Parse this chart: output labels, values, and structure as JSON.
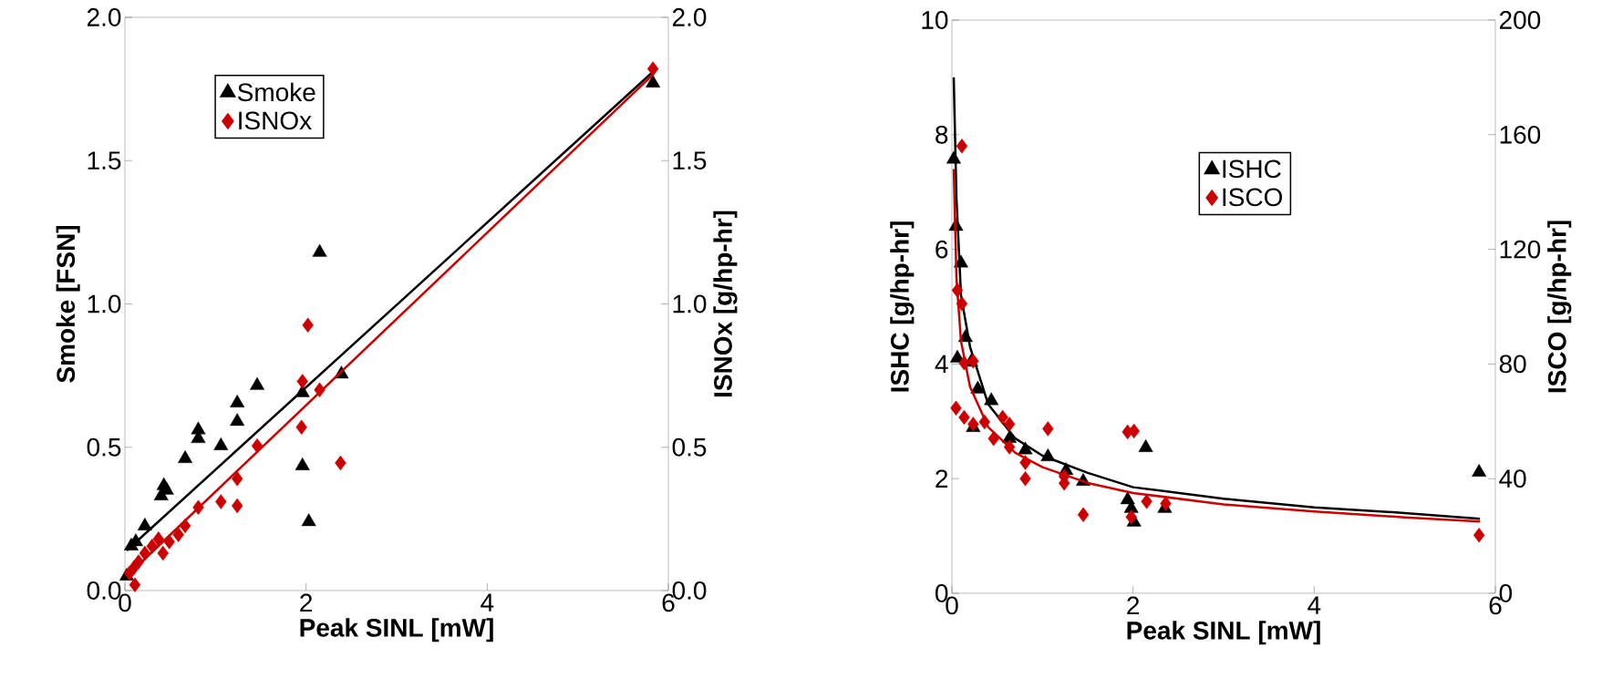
{
  "chart_data": [
    {
      "type": "scatter",
      "xlabel": "Peak SINL [mW]",
      "ylabel": "Smoke [FSN]",
      "y2label": "ISNOx [g/hp-hr]",
      "legend": "top left",
      "xlim": [
        0,
        6
      ],
      "xticks": [
        0,
        2,
        4,
        6
      ],
      "ylim": [
        0,
        2
      ],
      "yticks": [
        {
          "value": 0,
          "label": "0.0"
        },
        {
          "value": 0.5,
          "label": "0.5"
        },
        {
          "value": 1,
          "label": "1.0"
        },
        {
          "value": 1.5,
          "label": "1.5"
        },
        {
          "value": 2,
          "label": "2.0"
        }
      ],
      "y2lim": [
        0,
        2
      ],
      "y2ticks": [
        {
          "value": 0,
          "label": "0.0"
        },
        {
          "value": 0.5,
          "label": "0.5"
        },
        {
          "value": 1,
          "label": "1.0"
        },
        {
          "value": 1.5,
          "label": "1.5"
        },
        {
          "value": 2,
          "label": "2.0"
        }
      ],
      "series": [
        {
          "name": "Smoke",
          "color": "#000000",
          "marker": "triangle",
          "x": [
            5.83,
            2.15,
            2.39,
            1.96,
            1.46,
            1.24,
            1.24,
            0.81,
            0.81,
            1.06,
            0.665,
            0.4,
            0.43,
            0.46,
            1.96,
            2.03,
            0.22,
            0.12,
            0.07,
            0.02
          ],
          "values": [
            1.77,
            1.18,
            0.755,
            0.69,
            0.715,
            0.654,
            0.59,
            0.56,
            0.53,
            0.505,
            0.46,
            0.33,
            0.366,
            0.35,
            0.435,
            0.24,
            0.225,
            0.17,
            0.155,
            0.05
          ]
        },
        {
          "name": "ISNOx",
          "color": "#cc0000",
          "marker": "diamond",
          "axis": "y2",
          "x": [
            5.83,
            2.02,
            1.96,
            2.15,
            1.95,
            2.38,
            1.46,
            1.24,
            1.24,
            1.06,
            0.81,
            0.665,
            0.59,
            0.49,
            0.42,
            0.37,
            0.3,
            0.22,
            0.15,
            0.1,
            0.05,
            0.11
          ],
          "values": [
            1.82,
            0.926,
            0.73,
            0.7,
            0.57,
            0.445,
            0.505,
            0.39,
            0.296,
            0.31,
            0.29,
            0.226,
            0.195,
            0.17,
            0.13,
            0.18,
            0.155,
            0.13,
            0.1,
            0.08,
            0.06,
            0.02
          ]
        },
        {
          "type": "line",
          "color": "#000000",
          "marker": "none",
          "x": [
            0.02,
            5.83
          ],
          "values": [
            0.14,
            1.81
          ]
        },
        {
          "type": "line",
          "color": "#cc0000",
          "marker": "none",
          "axis": "y2",
          "x": [
            0.02,
            5.83
          ],
          "values": [
            0.05,
            1.8
          ]
        }
      ]
    },
    {
      "type": "scatter",
      "xlabel": "Peak SINL [mW]",
      "ylabel": "ISHC [g/hp-hr]",
      "y2label": "ISCO [g/hp-hr]",
      "legend": "top",
      "xlim": [
        0,
        6
      ],
      "xticks": [
        0,
        2,
        4,
        6
      ],
      "ylim": [
        0,
        10
      ],
      "yticks": [
        0,
        2,
        4,
        6,
        8,
        10
      ],
      "y2lim": [
        0,
        200
      ],
      "y2ticks": [
        0,
        40,
        80,
        120,
        160,
        200
      ],
      "series": [
        {
          "name": "ISHC",
          "color": "#000000",
          "marker": "triangle",
          "x": [
            0.02,
            0.045,
            0.1,
            0.15,
            0.06,
            0.21,
            0.285,
            0.235,
            0.435,
            0.635,
            0.81,
            1.06,
            1.26,
            1.45,
            1.94,
            1.98,
            2.01,
            2.14,
            2.35,
            5.82
          ],
          "values": [
            7.57,
            6.4,
            5.76,
            4.46,
            4.1,
            4.03,
            3.56,
            2.89,
            3.36,
            2.7,
            2.5,
            2.38,
            2.14,
            1.95,
            1.63,
            1.48,
            1.24,
            2.54,
            1.48,
            2.11
          ]
        },
        {
          "name": "ISCO",
          "color": "#cc0000",
          "marker": "diamond",
          "axis": "y2",
          "x": [
            0.11,
            0.06,
            0.11,
            0.045,
            0.135,
            0.235,
            0.135,
            0.235,
            0.36,
            0.46,
            0.56,
            0.635,
            0.635,
            1.06,
            0.81,
            0.81,
            1.24,
            1.24,
            1.45,
            1.94,
            2.01,
            1.98,
            2.15,
            2.36,
            5.82
          ],
          "values": [
            156,
            105.7,
            101,
            64.6,
            80.4,
            81,
            61.4,
            59,
            59.8,
            54,
            61.4,
            59,
            51,
            57.4,
            45.6,
            40,
            40.8,
            38.4,
            27.4,
            56.3,
            56.6,
            26.6,
            32,
            31.3,
            20.3
          ]
        },
        {
          "type": "line",
          "color": "#000000",
          "marker": "none",
          "x": [
            0.02,
            0.05,
            0.1,
            0.2,
            0.4,
            0.7,
            1,
            1.5,
            2,
            3,
            4,
            5,
            5.83
          ],
          "values": [
            9.0,
            6.9,
            5.2,
            4.3,
            3.3,
            2.7,
            2.4,
            2.1,
            1.85,
            1.65,
            1.5,
            1.4,
            1.3
          ]
        },
        {
          "type": "line",
          "color": "#cc0000",
          "marker": "none",
          "axis": "y2",
          "x": [
            0.02,
            0.05,
            0.1,
            0.2,
            0.4,
            0.7,
            1,
            1.5,
            2,
            3,
            4,
            5,
            5.83
          ],
          "values": [
            148,
            110,
            88,
            72,
            58,
            49,
            44,
            38.5,
            35,
            31,
            28.5,
            26.5,
            25
          ]
        }
      ]
    }
  ]
}
